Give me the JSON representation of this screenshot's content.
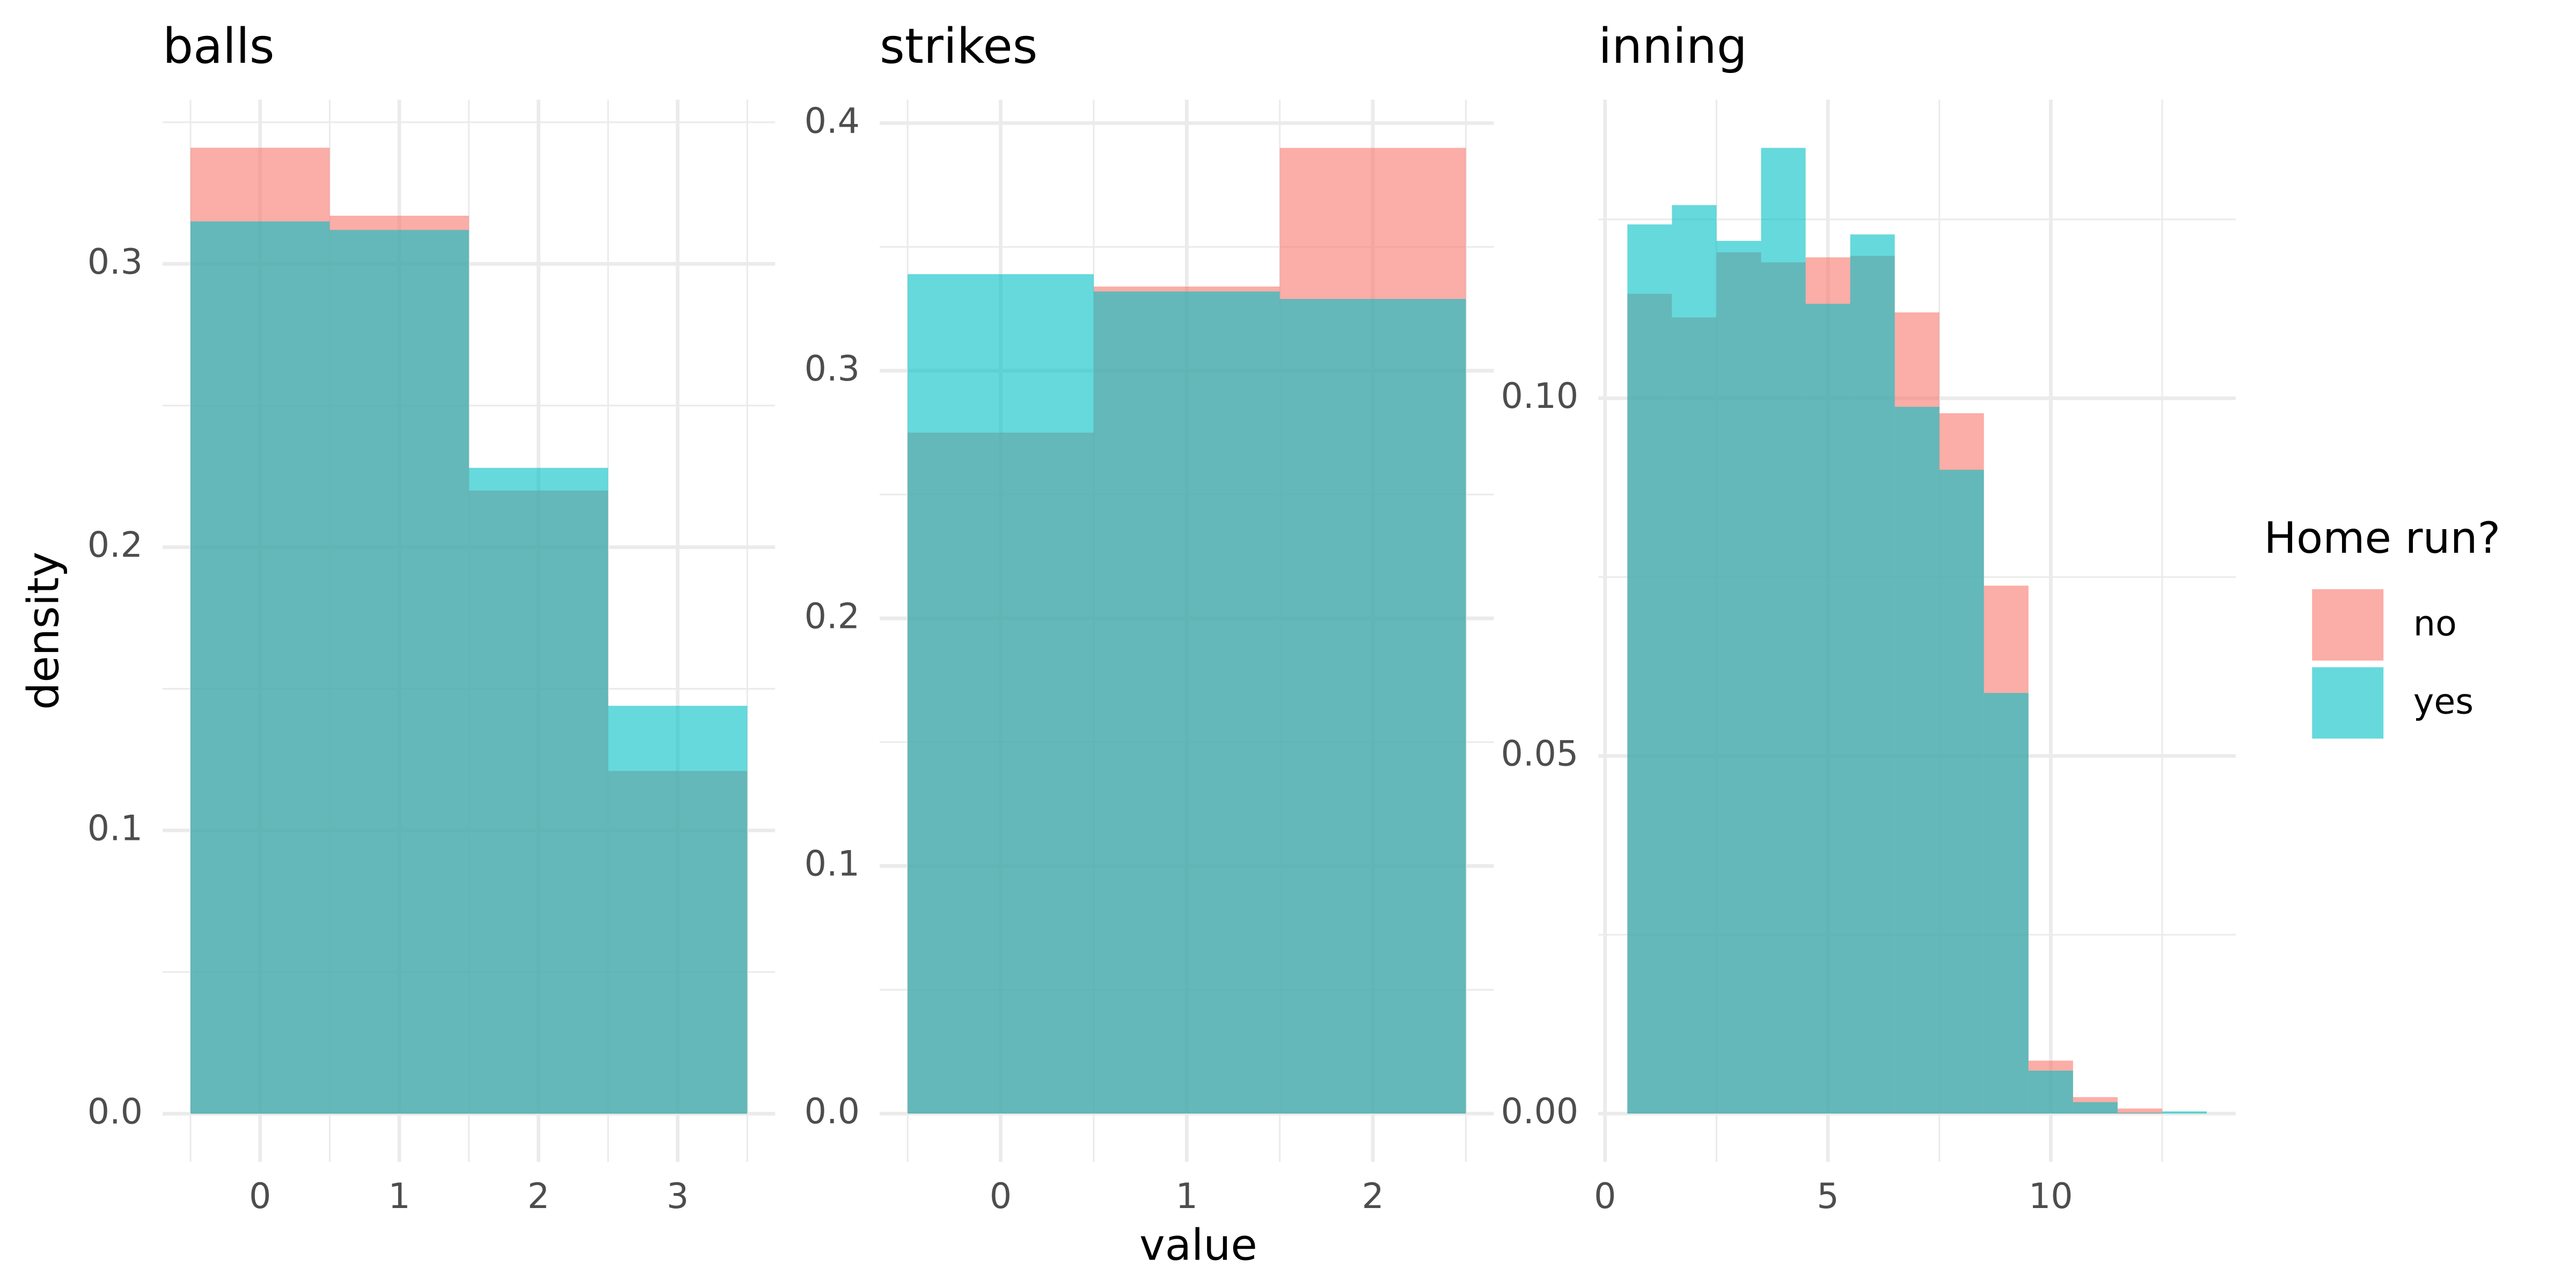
{
  "chart_data": [
    {
      "type": "histogram",
      "title": "balls",
      "bins": [
        -0.5,
        0.5,
        1.5,
        2.5,
        3.5
      ],
      "series": [
        {
          "name": "no",
          "color": "#F8766D",
          "values": [
            0.341,
            0.317,
            0.22,
            0.121
          ]
        },
        {
          "name": "yes",
          "color": "#00BFC4",
          "values": [
            0.315,
            0.312,
            0.228,
            0.144
          ]
        }
      ],
      "xlim": [
        -0.7,
        3.7
      ],
      "ylim": [
        -0.017,
        0.358
      ],
      "xticks": [
        0,
        1,
        2,
        3
      ],
      "yticks": [
        {
          "value": 0,
          "label": "0.0"
        },
        0.1,
        0.2,
        0.3
      ],
      "x_minor_ticks": [
        -0.5,
        0.5,
        1.5,
        2.5,
        3.5
      ],
      "y_minor_ticks": [
        0.05,
        0.15,
        0.25,
        0.35
      ],
      "grid": true
    },
    {
      "type": "histogram",
      "title": "strikes",
      "bins": [
        -0.5,
        0.5,
        1.5,
        2.5
      ],
      "series": [
        {
          "name": "no",
          "color": "#F8766D",
          "values": [
            0.275,
            0.334,
            0.39
          ]
        },
        {
          "name": "yes",
          "color": "#00BFC4",
          "values": [
            0.339,
            0.332,
            0.329
          ]
        }
      ],
      "xlim": [
        -0.65,
        2.65
      ],
      "ylim": [
        -0.0195,
        0.4095
      ],
      "xticks": [
        0,
        1,
        2
      ],
      "yticks": [
        {
          "value": 0,
          "label": "0.0"
        },
        0.1,
        0.2,
        0.3,
        0.4
      ],
      "x_minor_ticks": [
        -0.5,
        0.5,
        1.5,
        2.5
      ],
      "y_minor_ticks": [
        0.05,
        0.15,
        0.25,
        0.35
      ],
      "grid": true
    },
    {
      "type": "histogram",
      "title": "inning",
      "bins": [
        0.5,
        1.5,
        2.5,
        3.5,
        4.5,
        5.5,
        6.5,
        7.5,
        8.5,
        9.5,
        10.5,
        11.5,
        12.5,
        13.5
      ],
      "series": [
        {
          "name": "no",
          "color": "#F8766D",
          "values": [
            0.1146,
            0.1113,
            0.1204,
            0.119,
            0.1197,
            0.1199,
            0.112,
            0.0979,
            0.0738,
            0.0074,
            0.0023,
            0.0007,
            0
          ]
        },
        {
          "name": "yes",
          "color": "#00BFC4",
          "values": [
            0.1243,
            0.127,
            0.122,
            0.135,
            0.1132,
            0.1229,
            0.0988,
            0.09,
            0.0588,
            0.006,
            0.0016,
            0.0001,
            0.0003
          ]
        }
      ],
      "xlim": [
        -0.15,
        14.15
      ],
      "ylim": [
        -0.00675,
        0.14175
      ],
      "xticks": [
        0,
        5,
        10
      ],
      "yticks": [
        {
          "value": 0,
          "label": "0.00"
        },
        0.05,
        {
          "value": 0.1,
          "label": "0.10"
        }
      ],
      "x_minor_ticks": [
        2.5,
        7.5,
        12.5
      ],
      "y_minor_ticks": [
        0.025,
        0.075,
        0.125
      ],
      "grid": true
    }
  ],
  "shared": {
    "xlabel": "value",
    "ylabel": "density",
    "legend_title": "Home run?"
  }
}
